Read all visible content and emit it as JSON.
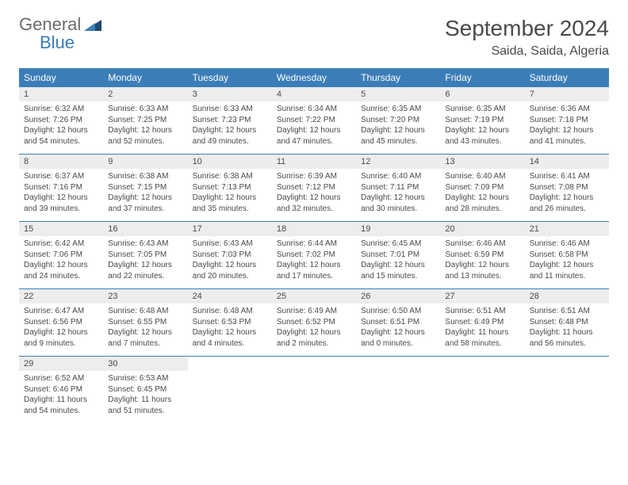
{
  "logo": {
    "general": "General",
    "blue": "Blue"
  },
  "title": "September 2024",
  "location": "Saida, Saida, Algeria",
  "accent_color": "#3b7db8",
  "daynum_bg": "#ededed",
  "text_color": "#4a4a4a",
  "day_names": [
    "Sunday",
    "Monday",
    "Tuesday",
    "Wednesday",
    "Thursday",
    "Friday",
    "Saturday"
  ],
  "weeks": [
    [
      {
        "n": "1",
        "sr": "Sunrise: 6:32 AM",
        "ss": "Sunset: 7:26 PM",
        "d1": "Daylight: 12 hours",
        "d2": "and 54 minutes."
      },
      {
        "n": "2",
        "sr": "Sunrise: 6:33 AM",
        "ss": "Sunset: 7:25 PM",
        "d1": "Daylight: 12 hours",
        "d2": "and 52 minutes."
      },
      {
        "n": "3",
        "sr": "Sunrise: 6:33 AM",
        "ss": "Sunset: 7:23 PM",
        "d1": "Daylight: 12 hours",
        "d2": "and 49 minutes."
      },
      {
        "n": "4",
        "sr": "Sunrise: 6:34 AM",
        "ss": "Sunset: 7:22 PM",
        "d1": "Daylight: 12 hours",
        "d2": "and 47 minutes."
      },
      {
        "n": "5",
        "sr": "Sunrise: 6:35 AM",
        "ss": "Sunset: 7:20 PM",
        "d1": "Daylight: 12 hours",
        "d2": "and 45 minutes."
      },
      {
        "n": "6",
        "sr": "Sunrise: 6:35 AM",
        "ss": "Sunset: 7:19 PM",
        "d1": "Daylight: 12 hours",
        "d2": "and 43 minutes."
      },
      {
        "n": "7",
        "sr": "Sunrise: 6:36 AM",
        "ss": "Sunset: 7:18 PM",
        "d1": "Daylight: 12 hours",
        "d2": "and 41 minutes."
      }
    ],
    [
      {
        "n": "8",
        "sr": "Sunrise: 6:37 AM",
        "ss": "Sunset: 7:16 PM",
        "d1": "Daylight: 12 hours",
        "d2": "and 39 minutes."
      },
      {
        "n": "9",
        "sr": "Sunrise: 6:38 AM",
        "ss": "Sunset: 7:15 PM",
        "d1": "Daylight: 12 hours",
        "d2": "and 37 minutes."
      },
      {
        "n": "10",
        "sr": "Sunrise: 6:38 AM",
        "ss": "Sunset: 7:13 PM",
        "d1": "Daylight: 12 hours",
        "d2": "and 35 minutes."
      },
      {
        "n": "11",
        "sr": "Sunrise: 6:39 AM",
        "ss": "Sunset: 7:12 PM",
        "d1": "Daylight: 12 hours",
        "d2": "and 32 minutes."
      },
      {
        "n": "12",
        "sr": "Sunrise: 6:40 AM",
        "ss": "Sunset: 7:11 PM",
        "d1": "Daylight: 12 hours",
        "d2": "and 30 minutes."
      },
      {
        "n": "13",
        "sr": "Sunrise: 6:40 AM",
        "ss": "Sunset: 7:09 PM",
        "d1": "Daylight: 12 hours",
        "d2": "and 28 minutes."
      },
      {
        "n": "14",
        "sr": "Sunrise: 6:41 AM",
        "ss": "Sunset: 7:08 PM",
        "d1": "Daylight: 12 hours",
        "d2": "and 26 minutes."
      }
    ],
    [
      {
        "n": "15",
        "sr": "Sunrise: 6:42 AM",
        "ss": "Sunset: 7:06 PM",
        "d1": "Daylight: 12 hours",
        "d2": "and 24 minutes."
      },
      {
        "n": "16",
        "sr": "Sunrise: 6:43 AM",
        "ss": "Sunset: 7:05 PM",
        "d1": "Daylight: 12 hours",
        "d2": "and 22 minutes."
      },
      {
        "n": "17",
        "sr": "Sunrise: 6:43 AM",
        "ss": "Sunset: 7:03 PM",
        "d1": "Daylight: 12 hours",
        "d2": "and 20 minutes."
      },
      {
        "n": "18",
        "sr": "Sunrise: 6:44 AM",
        "ss": "Sunset: 7:02 PM",
        "d1": "Daylight: 12 hours",
        "d2": "and 17 minutes."
      },
      {
        "n": "19",
        "sr": "Sunrise: 6:45 AM",
        "ss": "Sunset: 7:01 PM",
        "d1": "Daylight: 12 hours",
        "d2": "and 15 minutes."
      },
      {
        "n": "20",
        "sr": "Sunrise: 6:46 AM",
        "ss": "Sunset: 6:59 PM",
        "d1": "Daylight: 12 hours",
        "d2": "and 13 minutes."
      },
      {
        "n": "21",
        "sr": "Sunrise: 6:46 AM",
        "ss": "Sunset: 6:58 PM",
        "d1": "Daylight: 12 hours",
        "d2": "and 11 minutes."
      }
    ],
    [
      {
        "n": "22",
        "sr": "Sunrise: 6:47 AM",
        "ss": "Sunset: 6:56 PM",
        "d1": "Daylight: 12 hours",
        "d2": "and 9 minutes."
      },
      {
        "n": "23",
        "sr": "Sunrise: 6:48 AM",
        "ss": "Sunset: 6:55 PM",
        "d1": "Daylight: 12 hours",
        "d2": "and 7 minutes."
      },
      {
        "n": "24",
        "sr": "Sunrise: 6:48 AM",
        "ss": "Sunset: 6:53 PM",
        "d1": "Daylight: 12 hours",
        "d2": "and 4 minutes."
      },
      {
        "n": "25",
        "sr": "Sunrise: 6:49 AM",
        "ss": "Sunset: 6:52 PM",
        "d1": "Daylight: 12 hours",
        "d2": "and 2 minutes."
      },
      {
        "n": "26",
        "sr": "Sunrise: 6:50 AM",
        "ss": "Sunset: 6:51 PM",
        "d1": "Daylight: 12 hours",
        "d2": "and 0 minutes."
      },
      {
        "n": "27",
        "sr": "Sunrise: 6:51 AM",
        "ss": "Sunset: 6:49 PM",
        "d1": "Daylight: 11 hours",
        "d2": "and 58 minutes."
      },
      {
        "n": "28",
        "sr": "Sunrise: 6:51 AM",
        "ss": "Sunset: 6:48 PM",
        "d1": "Daylight: 11 hours",
        "d2": "and 56 minutes."
      }
    ],
    [
      {
        "n": "29",
        "sr": "Sunrise: 6:52 AM",
        "ss": "Sunset: 6:46 PM",
        "d1": "Daylight: 11 hours",
        "d2": "and 54 minutes."
      },
      {
        "n": "30",
        "sr": "Sunrise: 6:53 AM",
        "ss": "Sunset: 6:45 PM",
        "d1": "Daylight: 11 hours",
        "d2": "and 51 minutes."
      },
      {
        "empty": true
      },
      {
        "empty": true
      },
      {
        "empty": true
      },
      {
        "empty": true
      },
      {
        "empty": true
      }
    ]
  ]
}
